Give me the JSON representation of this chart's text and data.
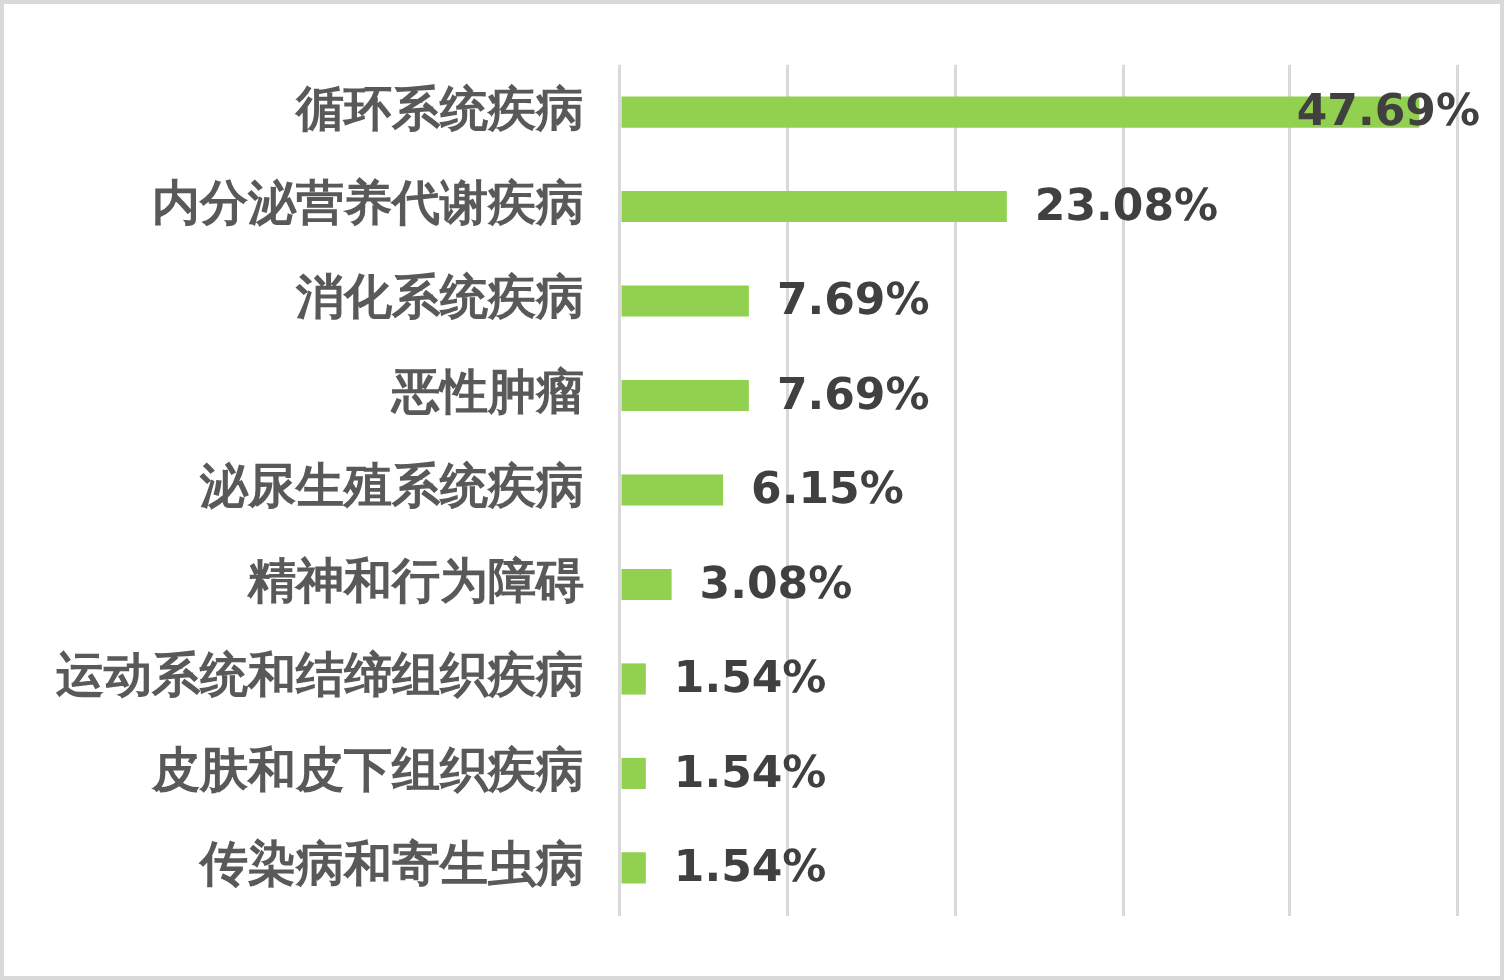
{
  "chart_data": {
    "type": "bar",
    "orientation": "horizontal",
    "categories": [
      "循环系统疾病",
      "内分泌营养代谢疾病",
      "消化系统疾病",
      "恶性肿瘤",
      "泌尿生殖系统疾病",
      "精神和行为障碍",
      "运动系统和结缔组织疾病",
      "皮肤和皮下组织疾病",
      "传染病和寄生虫病"
    ],
    "values": [
      47.69,
      23.08,
      7.69,
      7.69,
      6.15,
      3.08,
      1.54,
      1.54,
      1.54
    ],
    "value_labels": [
      "47.69%",
      "23.08%",
      "7.69%",
      "7.69%",
      "6.15%",
      "3.08%",
      "1.54%",
      "1.54%",
      "1.54%"
    ],
    "color": "#92d050",
    "xlim": [
      0,
      50
    ],
    "xticks": [
      {
        "value": 0,
        "label": null
      },
      {
        "value": 10,
        "label": null
      },
      {
        "value": 20,
        "label": null
      },
      {
        "value": 30,
        "label": null
      },
      {
        "value": 40,
        "label": null
      },
      {
        "value": 50,
        "label": null
      }
    ],
    "grid": "x",
    "tick_labels": "y"
  }
}
